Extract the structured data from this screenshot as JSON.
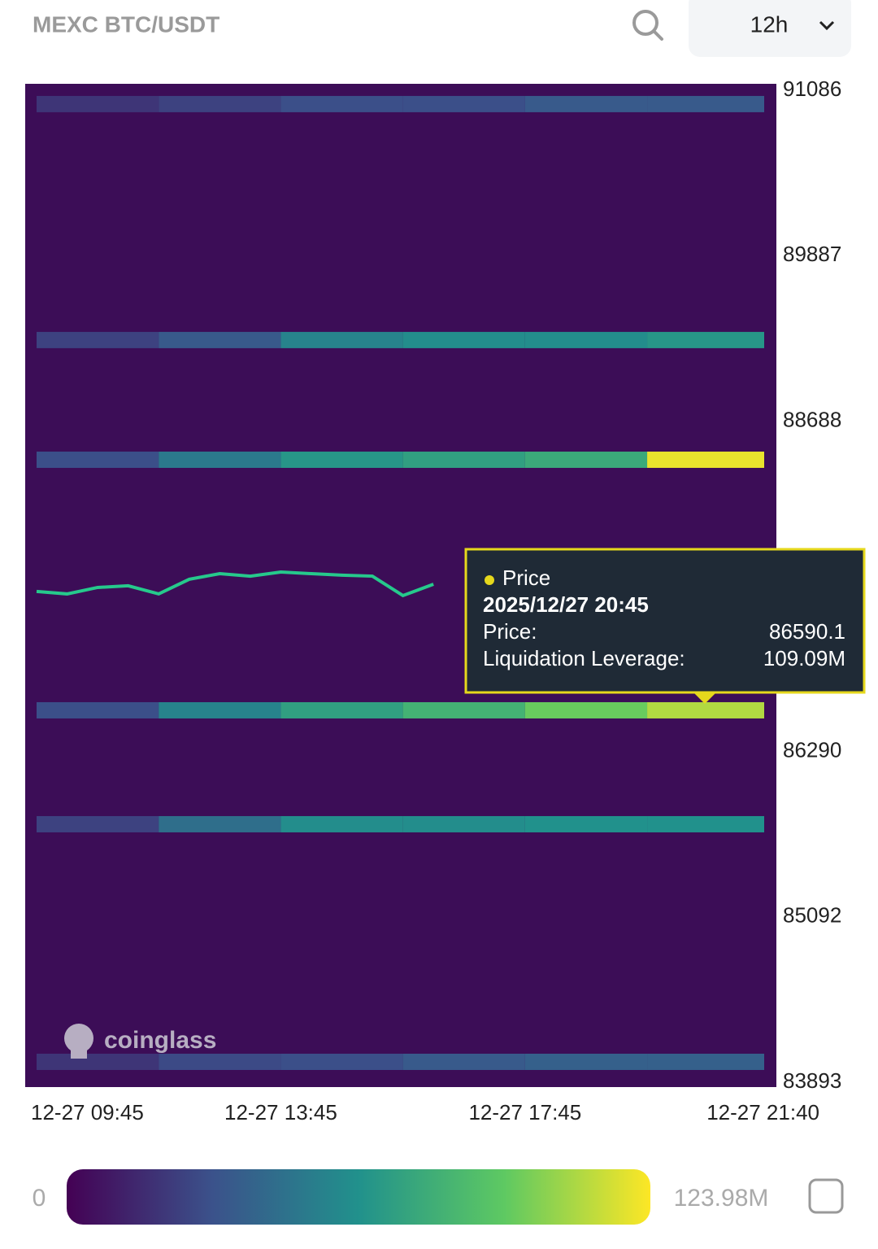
{
  "header": {
    "title": "MEXC BTC/USDT",
    "interval": "12h"
  },
  "chart_data": {
    "type": "heatmap",
    "background": "#3c0d57",
    "xlim": [
      "12-27 09:45",
      "12-27 21:40"
    ],
    "xticks": [
      "12-27 09:45",
      "12-27 13:45",
      "12-27 17:45",
      "12-27 21:40"
    ],
    "ylim": [
      83858,
      91133
    ],
    "yticks": [
      91086,
      89887,
      88688,
      86290,
      85092,
      83893
    ],
    "segments": [
      "12-27 09:45",
      "12-27 11:45",
      "12-27 13:45",
      "12-27 15:45",
      "12-27 17:45",
      "12-27 19:45"
    ],
    "bands": [
      {
        "price": 90986,
        "values": [
          20,
          25,
          30,
          30,
          35,
          35
        ]
      },
      {
        "price": 89275,
        "values": [
          25,
          35,
          55,
          60,
          60,
          65
        ]
      },
      {
        "price": 88407,
        "values": [
          30,
          50,
          65,
          70,
          75,
          120
        ]
      },
      {
        "price": 86590,
        "values": [
          30,
          55,
          70,
          80,
          95,
          109.09
        ]
      },
      {
        "price": 85764,
        "values": [
          25,
          45,
          60,
          60,
          62,
          62
        ]
      },
      {
        "price": 84041,
        "values": [
          20,
          28,
          30,
          35,
          38,
          38
        ]
      }
    ],
    "price_series": {
      "color": "#26c98c",
      "x": [
        "12-27 09:45",
        "12-27 10:15",
        "12-27 10:45",
        "12-27 11:15",
        "12-27 11:45",
        "12-27 12:15",
        "12-27 12:45",
        "12-27 13:15",
        "12-27 13:45",
        "12-27 14:15",
        "12-27 14:45",
        "12-27 15:15",
        "12-27 15:45",
        "12-27 16:15"
      ],
      "values": [
        87452,
        87434,
        87481,
        87493,
        87434,
        87540,
        87581,
        87563,
        87593,
        87581,
        87570,
        87563,
        87422,
        87504
      ]
    },
    "colorscale": [
      "#440154",
      "#3b528b",
      "#21918c",
      "#5ec962",
      "#fde725"
    ],
    "colorbar_ticks": [
      0,
      {
        "value": 123.98,
        "label": "123.98M"
      }
    ],
    "watermark": "coinglass",
    "tooltip": {
      "title": "Price",
      "date": "2025/12/27 20:45",
      "price_label": "Price:",
      "price": 86590.1,
      "leverage_label": "Liquidation Leverage:",
      "leverage": {
        "value": 109.09,
        "label": "109.09M"
      }
    }
  }
}
